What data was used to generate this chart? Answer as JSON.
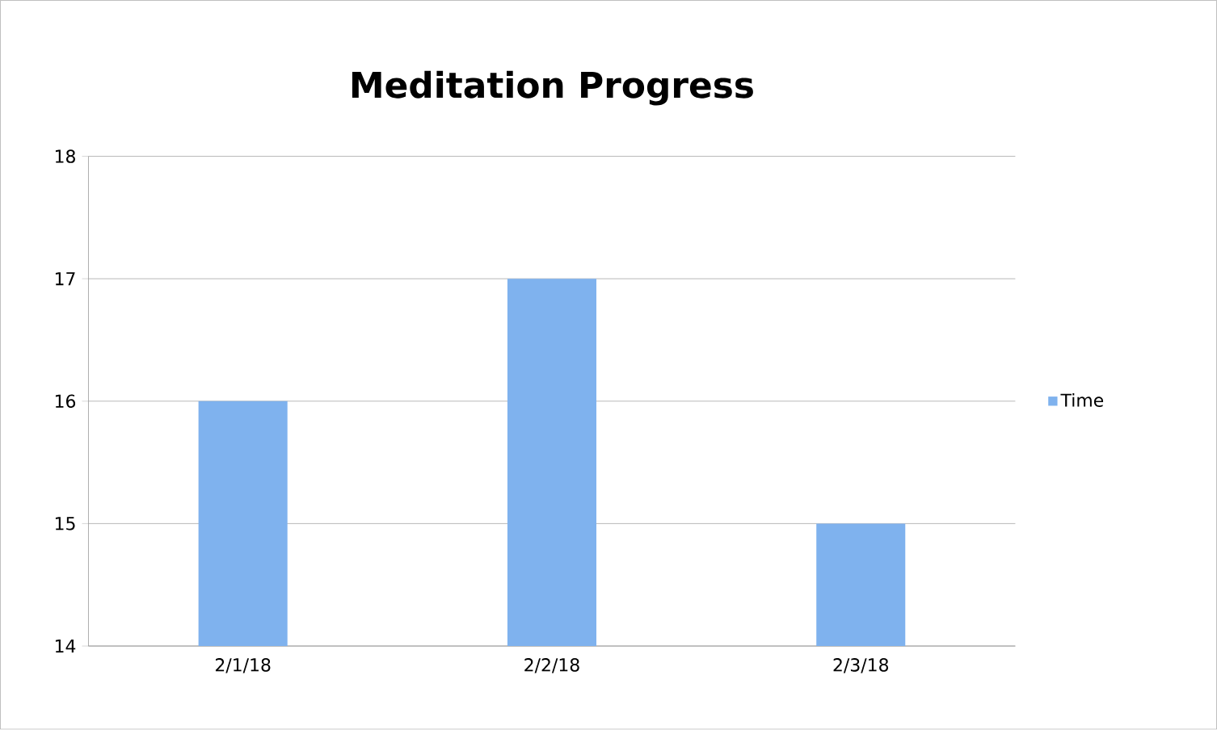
{
  "chart_data": {
    "type": "bar",
    "title": "Meditation Progress",
    "categories": [
      "2/1/18",
      "2/2/18",
      "2/3/18"
    ],
    "series": [
      {
        "name": "Time",
        "color": "#7fb2ee",
        "values": [
          16,
          17,
          15
        ]
      }
    ],
    "ylim": [
      14,
      18
    ],
    "yticks": [
      14,
      15,
      16,
      17,
      18
    ],
    "grid": "y",
    "legend": "right"
  }
}
